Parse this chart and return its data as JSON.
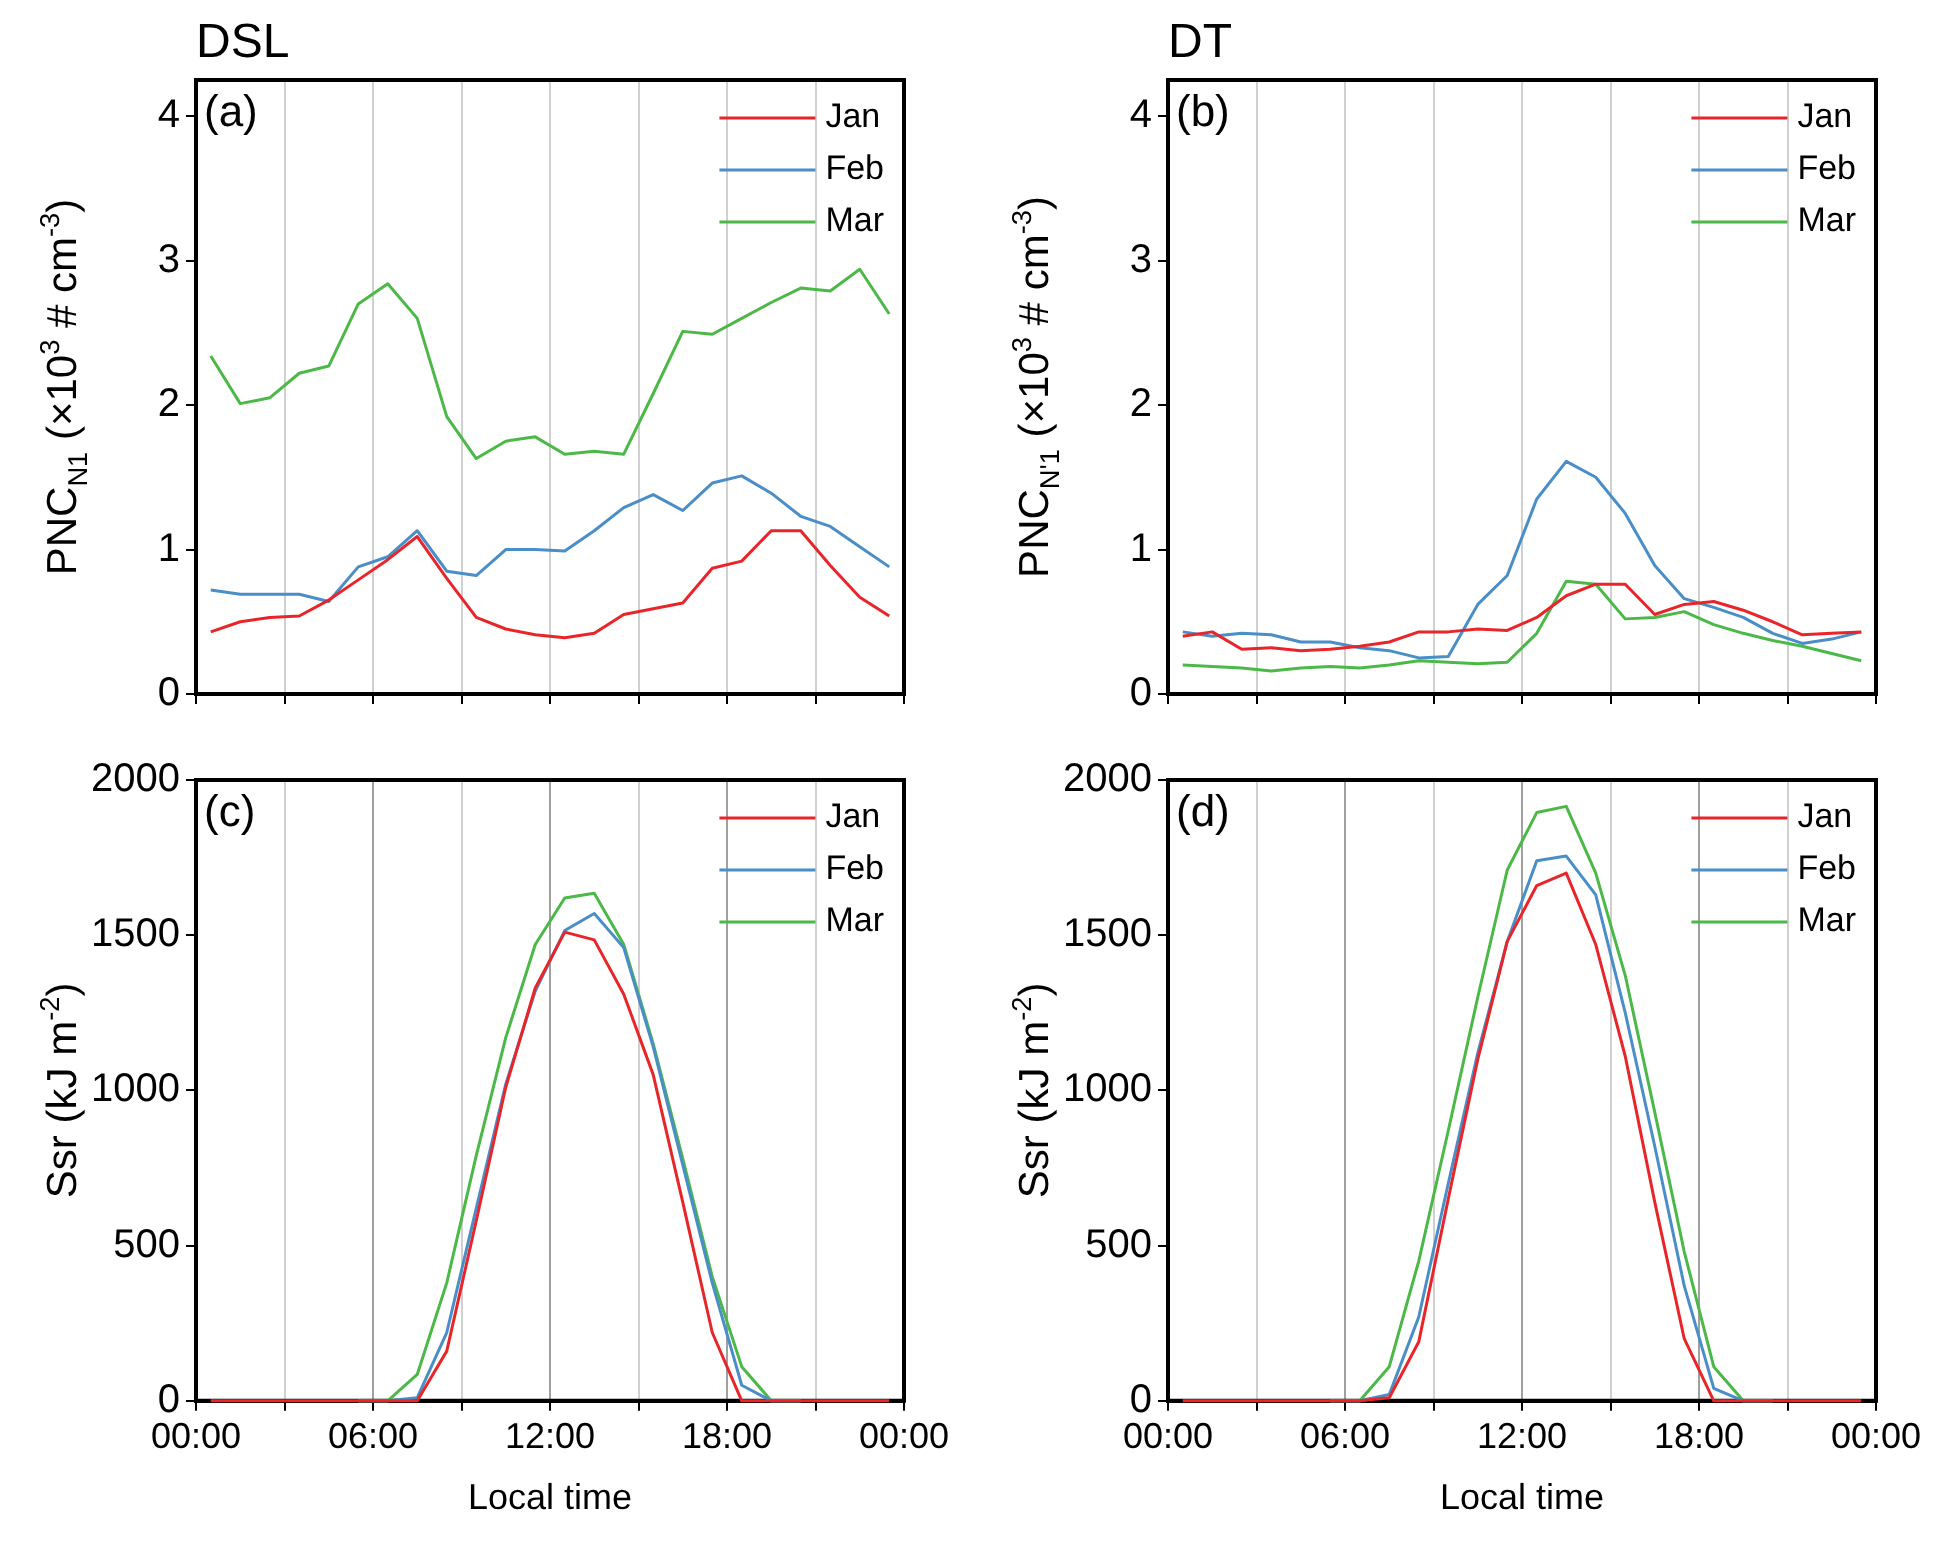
{
  "chart_data": [
    {
      "type": "line",
      "title": "DSL",
      "ylabel": "PNC$_{N1}$ (×10$^{3}$ # cm$^{-3}$)",
      "annotations": [
        "(a)"
      ],
      "x": [
        0.5,
        1.5,
        2.5,
        3.5,
        4.5,
        5.5,
        6.5,
        7.5,
        8.5,
        9.5,
        10.5,
        11.5,
        12.5,
        13.5,
        14.5,
        15.5,
        16.5,
        17.5,
        18.5,
        19.5,
        20.5,
        21.5,
        22.5,
        23.5
      ],
      "series": [
        {
          "name": "Jan",
          "color": "#e8262a",
          "values": [
            0.43,
            0.5,
            0.53,
            0.54,
            0.65,
            0.79,
            0.93,
            1.09,
            0.8,
            0.53,
            0.45,
            0.41,
            0.39,
            0.42,
            0.55,
            0.59,
            0.63,
            0.87,
            0.92,
            1.13,
            1.13,
            0.89,
            0.67,
            0.54
          ]
        },
        {
          "name": "Feb",
          "color": "#4a8ec8",
          "values": [
            0.72,
            0.69,
            0.69,
            0.69,
            0.64,
            0.88,
            0.95,
            1.13,
            0.85,
            0.82,
            1.0,
            1.0,
            0.99,
            1.13,
            1.29,
            1.38,
            1.27,
            1.46,
            1.51,
            1.39,
            1.23,
            1.16,
            1.02,
            0.88
          ]
        },
        {
          "name": "Mar",
          "color": "#4cb848",
          "values": [
            2.34,
            2.01,
            2.05,
            2.22,
            2.27,
            2.7,
            2.84,
            2.6,
            1.92,
            1.63,
            1.75,
            1.78,
            1.66,
            1.68,
            1.66,
            2.08,
            2.51,
            2.49,
            2.6,
            2.71,
            2.81,
            2.79,
            2.94,
            2.63
          ]
        }
      ],
      "xlim": [
        0,
        24
      ],
      "xticks": [
        {
          "value": 0,
          "label": null
        },
        {
          "value": 3,
          "label": null
        },
        {
          "value": 6,
          "label": null
        },
        {
          "value": 9,
          "label": null
        },
        {
          "value": 12,
          "label": null
        },
        {
          "value": 15,
          "label": null
        },
        {
          "value": 18,
          "label": null
        },
        {
          "value": 21,
          "label": null
        },
        {
          "value": 24,
          "label": null
        }
      ],
      "ylim": [
        0,
        4.25
      ],
      "yticks": [
        0,
        1,
        2,
        3,
        4
      ],
      "tick_labels": "y",
      "grid": "x",
      "legend": "top right",
      "marker": "none",
      "line_style": "solid"
    },
    {
      "type": "line",
      "title": "DT",
      "ylabel": "PNC$_{N'1}$ (×10$^{3}$ # cm$^{-3}$)",
      "annotations": [
        "(b)"
      ],
      "x": [
        0.5,
        1.5,
        2.5,
        3.5,
        4.5,
        5.5,
        6.5,
        7.5,
        8.5,
        9.5,
        10.5,
        11.5,
        12.5,
        13.5,
        14.5,
        15.5,
        16.5,
        17.5,
        18.5,
        19.5,
        20.5,
        21.5,
        22.5,
        23.5
      ],
      "series": [
        {
          "name": "Jan",
          "color": "#e8262a",
          "values": [
            0.4,
            0.43,
            0.31,
            0.32,
            0.3,
            0.31,
            0.33,
            0.36,
            0.43,
            0.43,
            0.45,
            0.44,
            0.53,
            0.68,
            0.76,
            0.76,
            0.55,
            0.62,
            0.64,
            0.58,
            0.5,
            0.41,
            0.42,
            0.43
          ]
        },
        {
          "name": "Feb",
          "color": "#4a8ec8",
          "values": [
            0.43,
            0.4,
            0.42,
            0.41,
            0.36,
            0.36,
            0.32,
            0.3,
            0.25,
            0.26,
            0.62,
            0.82,
            1.35,
            1.61,
            1.5,
            1.25,
            0.89,
            0.66,
            0.6,
            0.53,
            0.42,
            0.35,
            0.38,
            0.43
          ]
        },
        {
          "name": "Mar",
          "color": "#4cb848",
          "values": [
            0.2,
            0.19,
            0.18,
            0.16,
            0.18,
            0.19,
            0.18,
            0.2,
            0.23,
            0.22,
            0.21,
            0.22,
            0.42,
            0.78,
            0.76,
            0.52,
            0.53,
            0.57,
            0.48,
            0.42,
            0.37,
            0.33,
            0.28,
            0.23
          ]
        }
      ],
      "xlim": [
        0,
        24
      ],
      "xticks": [
        {
          "value": 0,
          "label": null
        },
        {
          "value": 3,
          "label": null
        },
        {
          "value": 6,
          "label": null
        },
        {
          "value": 9,
          "label": null
        },
        {
          "value": 12,
          "label": null
        },
        {
          "value": 15,
          "label": null
        },
        {
          "value": 18,
          "label": null
        },
        {
          "value": 21,
          "label": null
        },
        {
          "value": 24,
          "label": null
        }
      ],
      "ylim": [
        0,
        4.25
      ],
      "yticks": [
        0,
        1,
        2,
        3,
        4
      ],
      "tick_labels": "y",
      "grid": "x",
      "legend": "top right",
      "marker": "none",
      "line_style": "solid"
    },
    {
      "type": "line",
      "xlabel": "Local time",
      "ylabel": "Ssr (kJ m$^{-2}$)",
      "annotations": [
        "(c)"
      ],
      "x": [
        0.5,
        1.5,
        2.5,
        3.5,
        4.5,
        5.5,
        6.5,
        7.5,
        8.5,
        9.5,
        10.5,
        11.5,
        12.5,
        13.5,
        14.5,
        15.5,
        16.5,
        17.5,
        18.5,
        19.5,
        20.5,
        21.5,
        22.5,
        23.5
      ],
      "series": [
        {
          "name": "Jan",
          "color": "#e8262a",
          "values": [
            0,
            0,
            0,
            0,
            0,
            0,
            0,
            0,
            160,
            580,
            1010,
            1330,
            1510,
            1485,
            1310,
            1050,
            640,
            220,
            0,
            0,
            0,
            0,
            0,
            0
          ]
        },
        {
          "name": "Feb",
          "color": "#4a8ec8",
          "values": [
            null,
            null,
            null,
            null,
            null,
            0,
            0,
            10,
            220,
            620,
            1020,
            1320,
            1515,
            1570,
            1460,
            1140,
            760,
            380,
            50,
            0,
            0,
            null,
            null,
            null
          ]
        },
        {
          "name": "Mar",
          "color": "#4cb848",
          "values": [
            null,
            null,
            null,
            null,
            null,
            0,
            0,
            85,
            380,
            790,
            1170,
            1470,
            1620,
            1635,
            1470,
            1150,
            780,
            400,
            110,
            0,
            0,
            null,
            null,
            null
          ]
        }
      ],
      "xlim": [
        0,
        24
      ],
      "xticks": [
        {
          "value": 0,
          "label": "00:00"
        },
        {
          "value": 3,
          "label": null
        },
        {
          "value": 6,
          "label": "06:00"
        },
        {
          "value": 9,
          "label": null
        },
        {
          "value": 12,
          "label": "12:00"
        },
        {
          "value": 15,
          "label": null
        },
        {
          "value": 18,
          "label": "18:00"
        },
        {
          "value": 21,
          "label": null
        },
        {
          "value": 24,
          "label": "00:00"
        }
      ],
      "ylim": [
        0,
        2000
      ],
      "yticks": [
        0,
        500,
        1000,
        1500,
        2000
      ],
      "grid": "x",
      "legend": "top right",
      "marker": "none",
      "line_style": "solid"
    },
    {
      "type": "line",
      "xlabel": "Local time",
      "ylabel": "Ssr (kJ m$^{-2}$)",
      "annotations": [
        "(d)"
      ],
      "x": [
        0.5,
        1.5,
        2.5,
        3.5,
        4.5,
        5.5,
        6.5,
        7.5,
        8.5,
        9.5,
        10.5,
        11.5,
        12.5,
        13.5,
        14.5,
        15.5,
        16.5,
        17.5,
        18.5,
        19.5,
        20.5,
        21.5,
        22.5,
        23.5
      ],
      "series": [
        {
          "name": "Jan",
          "color": "#e8262a",
          "values": [
            0,
            0,
            0,
            0,
            0,
            0,
            0,
            10,
            190,
            650,
            1100,
            1480,
            1660,
            1700,
            1470,
            1110,
            640,
            200,
            0,
            0,
            0,
            0,
            0,
            0
          ]
        },
        {
          "name": "Feb",
          "color": "#4a8ec8",
          "values": [
            null,
            null,
            null,
            null,
            null,
            0,
            0,
            20,
            270,
            700,
            1120,
            1480,
            1740,
            1755,
            1630,
            1250,
            820,
            370,
            40,
            0,
            0,
            null,
            null,
            null
          ]
        },
        {
          "name": "Mar",
          "color": "#4cb848",
          "values": [
            null,
            null,
            null,
            null,
            null,
            0,
            0,
            110,
            450,
            870,
            1300,
            1710,
            1895,
            1915,
            1700,
            1370,
            930,
            480,
            110,
            0,
            0,
            null,
            null,
            null
          ]
        }
      ],
      "xlim": [
        0,
        24
      ],
      "xticks": [
        {
          "value": 0,
          "label": "00:00"
        },
        {
          "value": 3,
          "label": null
        },
        {
          "value": 6,
          "label": "06:00"
        },
        {
          "value": 9,
          "label": null
        },
        {
          "value": 12,
          "label": "12:00"
        },
        {
          "value": 15,
          "label": null
        },
        {
          "value": 18,
          "label": "18:00"
        },
        {
          "value": 21,
          "label": null
        },
        {
          "value": 24,
          "label": "00:00"
        }
      ],
      "ylim": [
        0,
        2000
      ],
      "yticks": [
        0,
        500,
        1000,
        1500,
        2000
      ],
      "grid": "x",
      "legend": "top right",
      "marker": "none",
      "line_style": "solid"
    }
  ]
}
